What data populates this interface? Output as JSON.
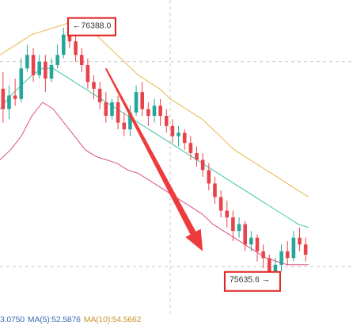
{
  "colors": {
    "up": "#26a69a",
    "down": "#e8434b",
    "ma_yellow": "#f0b90b",
    "band_upper": "#e8b84a",
    "band_mid": "#3cc6a7",
    "band_lower": "#d94f8a",
    "arrow": "#ee3b3b",
    "highlight_box": "#e02020",
    "grid": "#c8c8c8"
  },
  "chart_data": {
    "type": "candlestick",
    "ylim": [
      75560,
      76420
    ],
    "high_marker": {
      "label": "76388.0",
      "value": 76388.0
    },
    "low_marker": {
      "label": "75635.6",
      "value": 75635.6
    },
    "candles": [
      [
        76200,
        76140,
        76250,
        76100
      ],
      [
        76140,
        76180,
        76210,
        76110
      ],
      [
        76180,
        76170,
        76230,
        76150
      ],
      [
        76170,
        76260,
        76290,
        76160
      ],
      [
        76260,
        76300,
        76330,
        76250
      ],
      [
        76300,
        76240,
        76320,
        76220
      ],
      [
        76240,
        76280,
        76300,
        76230
      ],
      [
        76280,
        76230,
        76300,
        76190
      ],
      [
        76230,
        76270,
        76290,
        76220
      ],
      [
        76270,
        76300,
        76330,
        76260
      ],
      [
        76300,
        76360,
        76380,
        76290
      ],
      [
        76360,
        76340,
        76388,
        76320
      ],
      [
        76340,
        76300,
        76370,
        76280
      ],
      [
        76300,
        76270,
        76320,
        76250
      ],
      [
        76270,
        76220,
        76290,
        76200
      ],
      [
        76220,
        76200,
        76240,
        76170
      ],
      [
        76200,
        76160,
        76220,
        76140
      ],
      [
        76160,
        76120,
        76190,
        76100
      ],
      [
        76120,
        76160,
        76170,
        76110
      ],
      [
        76160,
        76100,
        76180,
        76080
      ],
      [
        76100,
        76080,
        76130,
        76060
      ],
      [
        76080,
        76130,
        76150,
        76060
      ],
      [
        76130,
        76190,
        76210,
        76120
      ],
      [
        76190,
        76140,
        76220,
        76120
      ],
      [
        76140,
        76120,
        76160,
        76090
      ],
      [
        76120,
        76150,
        76170,
        76100
      ],
      [
        76150,
        76120,
        76170,
        76090
      ],
      [
        76120,
        76090,
        76140,
        76070
      ],
      [
        76090,
        76060,
        76110,
        76040
      ],
      [
        76060,
        76070,
        76090,
        76030
      ],
      [
        76070,
        76040,
        76080,
        76020
      ],
      [
        76040,
        76010,
        76060,
        75990
      ],
      [
        76010,
        75990,
        76030,
        75970
      ],
      [
        75990,
        75960,
        76010,
        75940
      ],
      [
        75960,
        75920,
        75980,
        75900
      ],
      [
        75920,
        75880,
        75940,
        75860
      ],
      [
        75880,
        75840,
        75900,
        75820
      ],
      [
        75840,
        75820,
        75870,
        75790
      ],
      [
        75820,
        75780,
        75840,
        75750
      ],
      [
        75780,
        75800,
        75820,
        75760
      ],
      [
        75800,
        75740,
        75810,
        75720
      ],
      [
        75740,
        75760,
        75780,
        75720
      ],
      [
        75760,
        75720,
        75770,
        75690
      ],
      [
        75720,
        75700,
        75740,
        75670
      ],
      [
        75700,
        75660,
        75710,
        75640
      ],
      [
        75660,
        75680,
        75700,
        75636
      ],
      [
        75680,
        75720,
        75740,
        75660
      ],
      [
        75720,
        75700,
        75750,
        75680
      ],
      [
        75700,
        75760,
        75780,
        75690
      ],
      [
        75760,
        75740,
        75790,
        75720
      ],
      [
        75740,
        75710,
        75760,
        75690
      ]
    ],
    "series": [
      {
        "values": [
          76300,
          76320,
          76340,
          76360,
          76370,
          76380,
          76390,
          76400,
          76380,
          76360,
          76330,
          76300,
          76270,
          76240,
          76220,
          76200,
          76170,
          76150,
          76130,
          76110,
          76080,
          76050,
          76020,
          76000,
          75980,
          75960,
          75940,
          75920,
          75900,
          75880
        ]
      },
      {
        "values": [
          76140,
          76180,
          76210,
          76240,
          76260,
          76260,
          76240,
          76220,
          76200,
          76180,
          76160,
          76140,
          76120,
          76100,
          76080,
          76060,
          76040,
          76020,
          76000,
          75980,
          75960,
          75940,
          75920,
          75900,
          75880,
          75860,
          75840,
          75820,
          75800,
          75790
        ]
      },
      {
        "values": [
          75990,
          76020,
          76060,
          76120,
          76160,
          76140,
          76100,
          76060,
          76020,
          76000,
          75990,
          75980,
          75960,
          75950,
          75930,
          75910,
          75890,
          75870,
          75850,
          75830,
          75800,
          75780,
          75760,
          75740,
          75720,
          75700,
          75690,
          75680,
          75680,
          75680
        ]
      }
    ]
  },
  "volume_row": {
    "first_value": "3.0750",
    "ma5": "MA(5):52.5876",
    "ma10": "MA(10):54.5662"
  }
}
